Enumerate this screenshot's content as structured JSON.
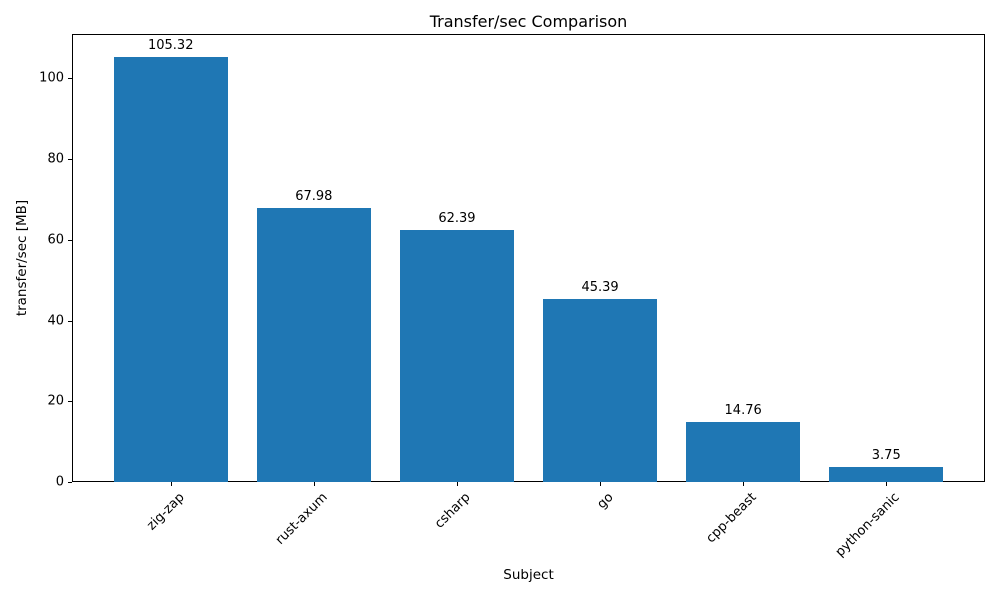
{
  "chart_data": {
    "type": "bar",
    "title": "Transfer/sec Comparison",
    "xlabel": "Subject",
    "ylabel": "transfer/sec [MB]",
    "categories": [
      "zig-zap",
      "rust-axum",
      "csharp",
      "go",
      "cpp-beast",
      "python-sanic"
    ],
    "values": [
      105.32,
      67.98,
      62.39,
      45.39,
      14.76,
      3.75
    ],
    "bar_labels": [
      "105.32",
      "67.98",
      "62.39",
      "45.39",
      "14.76",
      "3.75"
    ],
    "yticks": [
      0,
      20,
      40,
      60,
      80,
      100
    ],
    "ylim": [
      0,
      111
    ],
    "bar_color": "#1f77b4",
    "axis_color": "#000000",
    "text_color": "#000000",
    "grid": false,
    "legend": null,
    "x_tick_rotation_deg": 45
  }
}
